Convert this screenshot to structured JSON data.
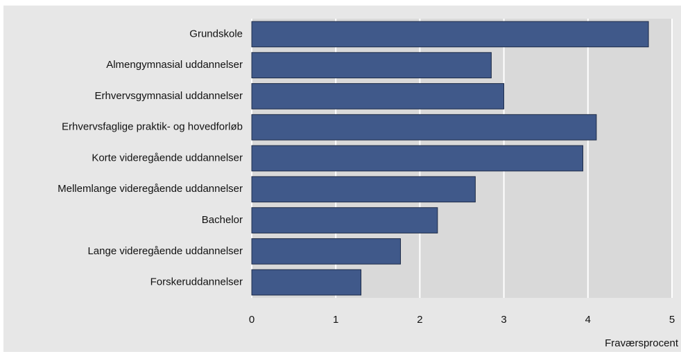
{
  "chart_data": {
    "type": "hbar",
    "categories": [
      "Grundskole",
      "Almengymnasial uddannelser",
      "Erhvervsgymnasial uddannelser",
      "Erhvervsfaglige praktik- og hovedforløb",
      "Korte videregående uddannelser",
      "Mellemlange videregående uddannelser",
      "Bachelor",
      "Lange videregående uddannelser",
      "Forskeruddannelser"
    ],
    "values": [
      4.72,
      2.85,
      3.0,
      4.1,
      3.94,
      2.66,
      2.21,
      1.77,
      1.3
    ],
    "color": "#40598a",
    "xlabel": "Fraværsprocent",
    "xlim": [
      0,
      5
    ],
    "xticks": [
      0,
      1,
      2,
      3,
      4,
      5
    ],
    "grid": true
  }
}
